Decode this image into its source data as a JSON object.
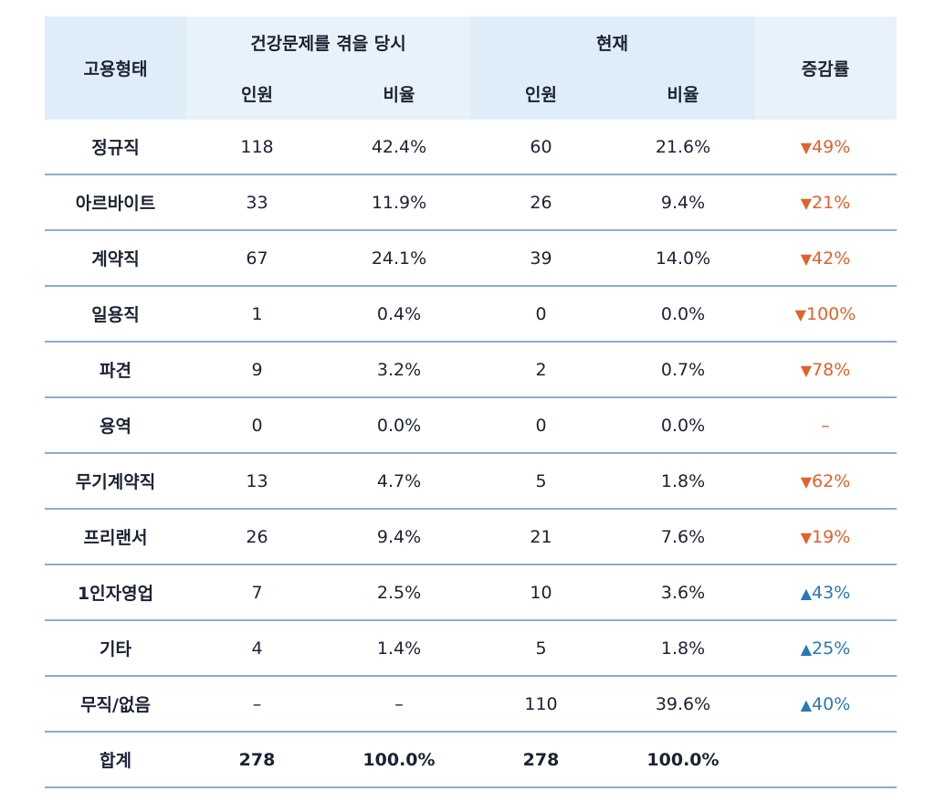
{
  "header": {
    "col_type": "고용형태",
    "group_then": "건강문제를 겪을 당시",
    "group_now": "현재",
    "col_change": "증감률",
    "sub_people": "인원",
    "sub_ratio": "비율"
  },
  "rows": [
    {
      "type": "정규직",
      "then_n": "118",
      "then_pct": "42.4%",
      "now_n": "60",
      "now_pct": "21.6%",
      "dir": "down",
      "arrow": "▼",
      "change": "49%"
    },
    {
      "type": "아르바이트",
      "then_n": "33",
      "then_pct": "11.9%",
      "now_n": "26",
      "now_pct": "9.4%",
      "dir": "down",
      "arrow": "▼",
      "change": "21%"
    },
    {
      "type": "계약직",
      "then_n": "67",
      "then_pct": "24.1%",
      "now_n": "39",
      "now_pct": "14.0%",
      "dir": "down",
      "arrow": "▼",
      "change": "42%"
    },
    {
      "type": "일용직",
      "then_n": "1",
      "then_pct": "0.4%",
      "now_n": "0",
      "now_pct": "0.0%",
      "dir": "down",
      "arrow": "▼",
      "change": "100%"
    },
    {
      "type": "파견",
      "then_n": "9",
      "then_pct": "3.2%",
      "now_n": "2",
      "now_pct": "0.7%",
      "dir": "down",
      "arrow": "▼",
      "change": "78%"
    },
    {
      "type": "용역",
      "then_n": "0",
      "then_pct": "0.0%",
      "now_n": "0",
      "now_pct": "0.0%",
      "dir": "neutral",
      "arrow": "",
      "change": "–"
    },
    {
      "type": "무기계약직",
      "then_n": "13",
      "then_pct": "4.7%",
      "now_n": "5",
      "now_pct": "1.8%",
      "dir": "down",
      "arrow": "▼",
      "change": "62%"
    },
    {
      "type": "프리랜서",
      "then_n": "26",
      "then_pct": "9.4%",
      "now_n": "21",
      "now_pct": "7.6%",
      "dir": "down",
      "arrow": "▼",
      "change": "19%"
    },
    {
      "type": "1인자영업",
      "then_n": "7",
      "then_pct": "2.5%",
      "now_n": "10",
      "now_pct": "3.6%",
      "dir": "up",
      "arrow": "▲",
      "change": "43%"
    },
    {
      "type": "기타",
      "then_n": "4",
      "then_pct": "1.4%",
      "now_n": "5",
      "now_pct": "1.8%",
      "dir": "up",
      "arrow": "▲",
      "change": "25%"
    },
    {
      "type": "무직/없음",
      "then_n": "–",
      "then_pct": "–",
      "now_n": "110",
      "now_pct": "39.6%",
      "dir": "up",
      "arrow": "▲",
      "change": "40%"
    }
  ],
  "total": {
    "type": "합계",
    "then_n": "278",
    "then_pct": "100.0%",
    "now_n": "278",
    "now_pct": "100.0%",
    "change": ""
  },
  "colors": {
    "down": "#e0622c",
    "up": "#2a78b6",
    "header_bg": "#deedf8",
    "row_border": "#8aaed0"
  }
}
